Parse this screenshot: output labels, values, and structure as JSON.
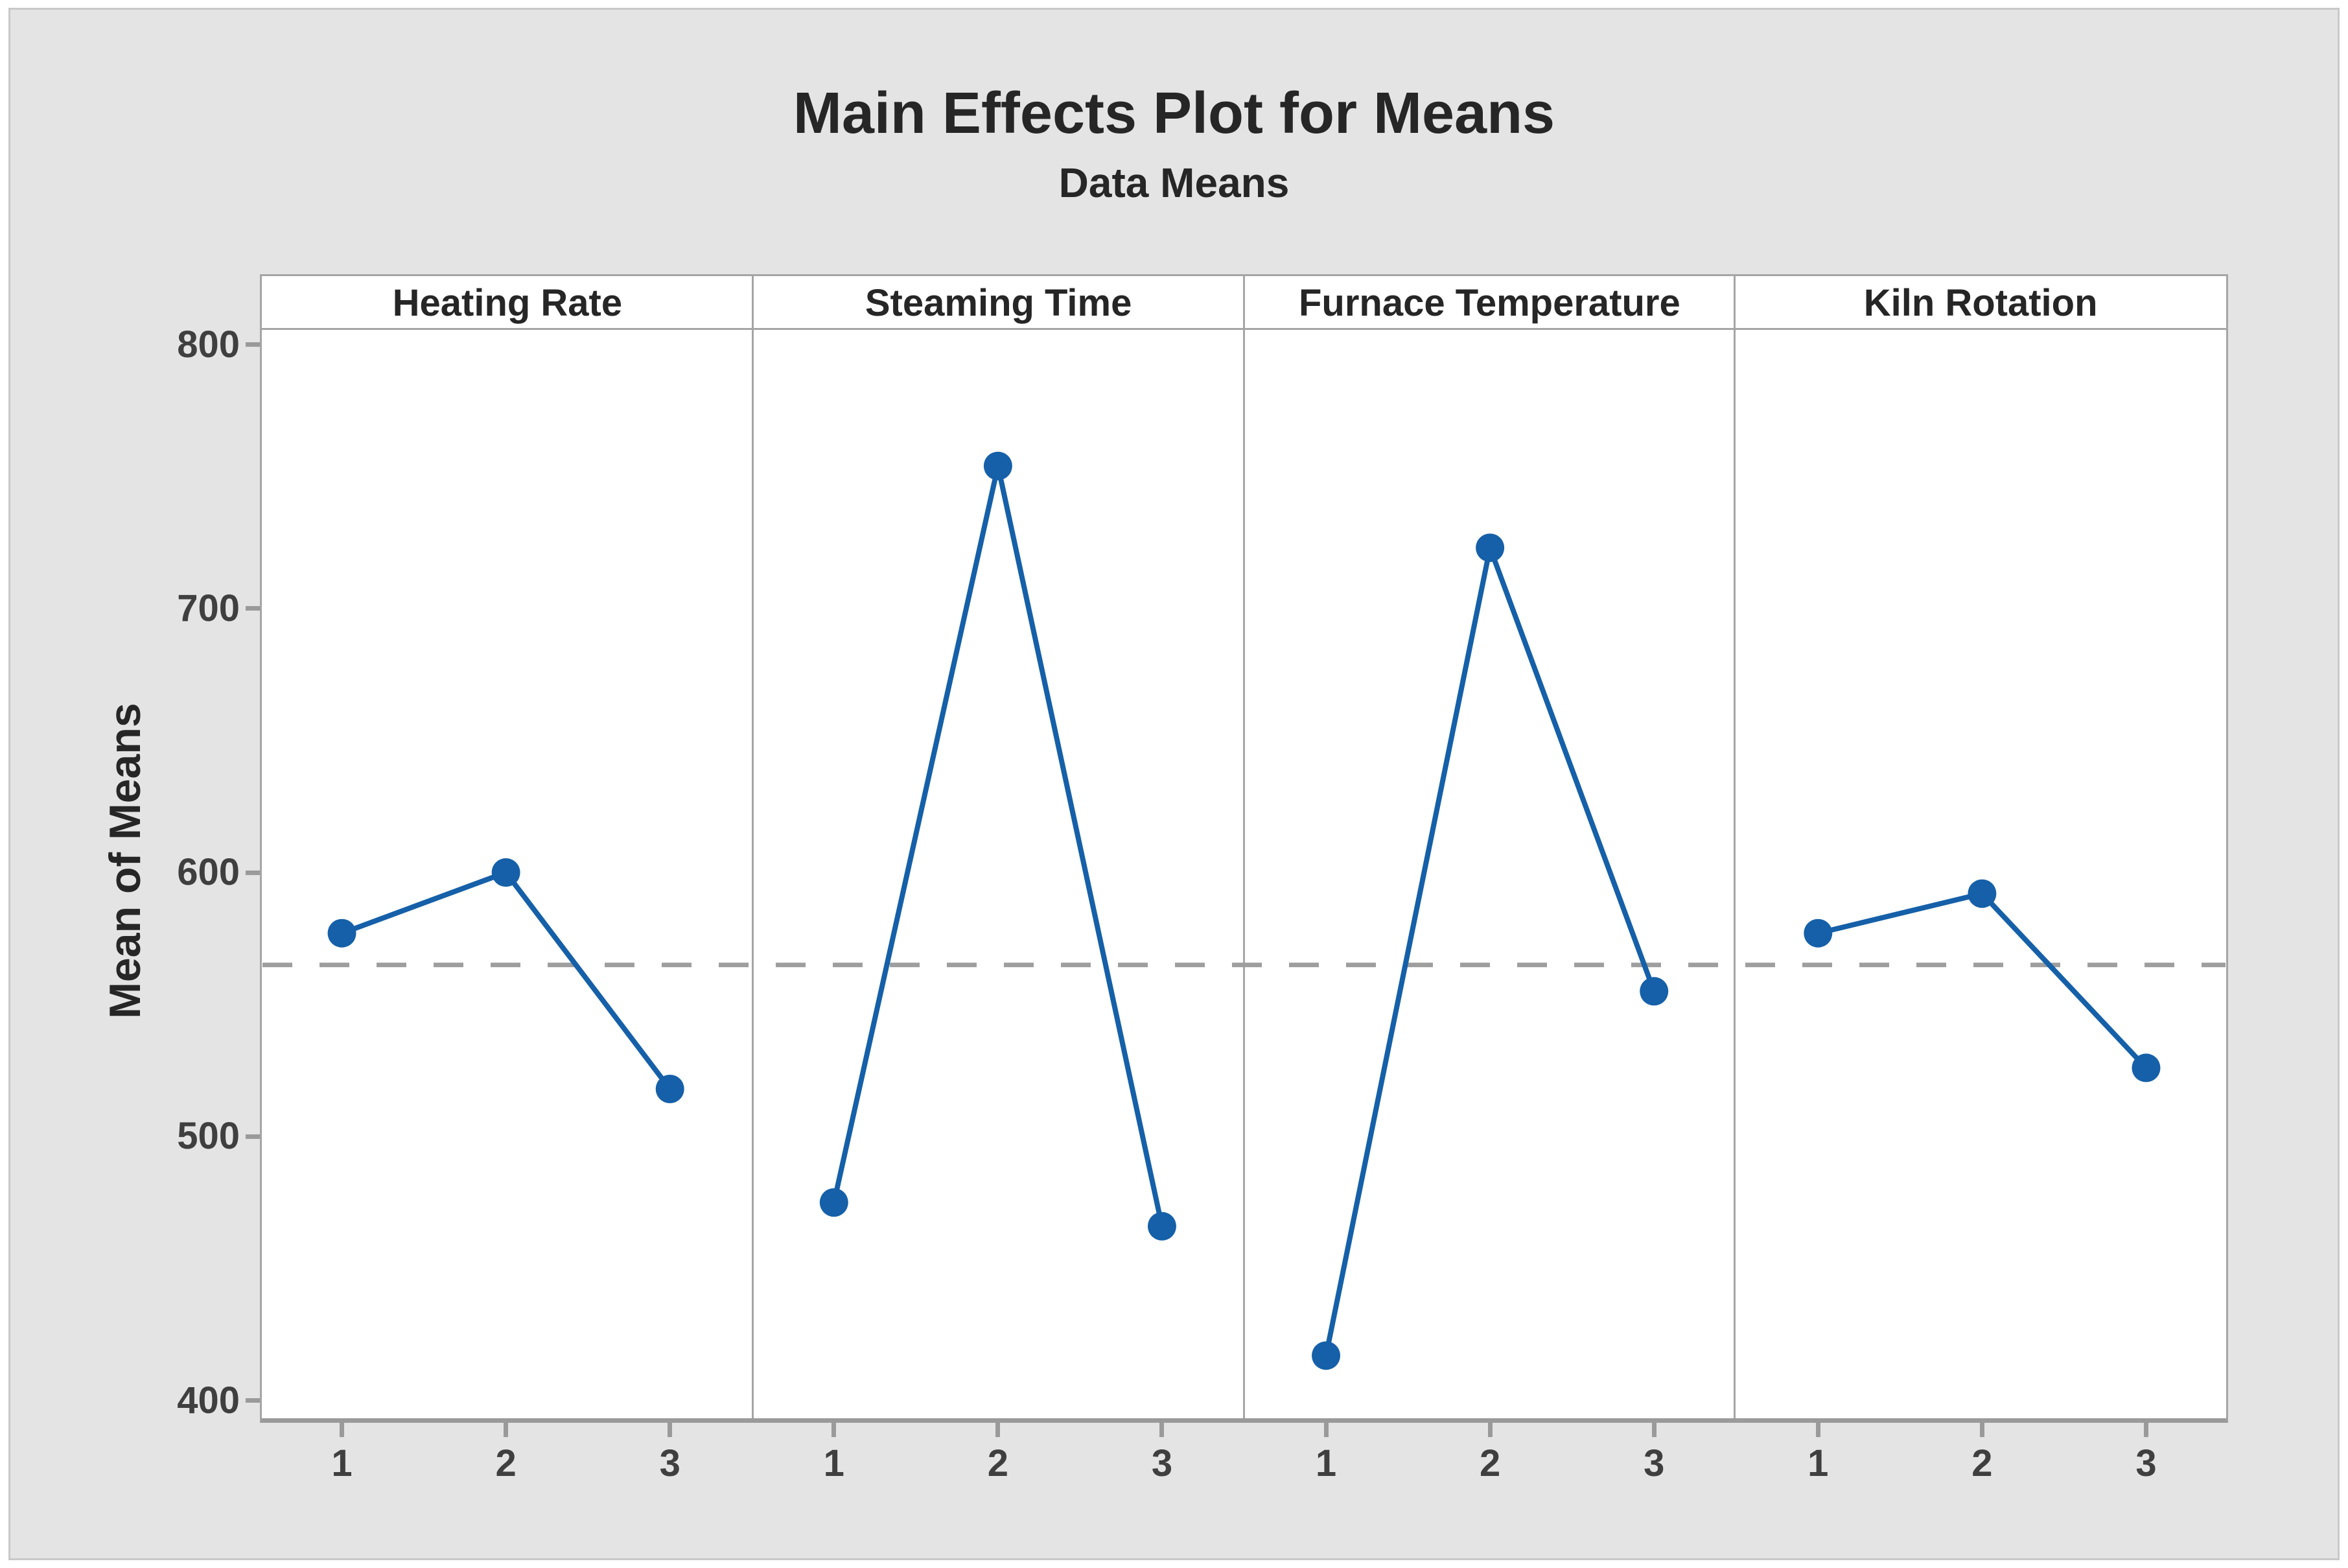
{
  "chart_data": {
    "type": "line",
    "title": "Main Effects Plot for Means",
    "subtitle": "Data Means",
    "ylabel": "Mean of Means",
    "categories": [
      "1",
      "2",
      "3"
    ],
    "yticks": [
      400,
      500,
      600,
      700,
      800
    ],
    "ylim": [
      394,
      807
    ],
    "grid": false,
    "legend": false,
    "panels": [
      {
        "label": "Heating Rate",
        "x": [
          1,
          2,
          3
        ],
        "values": [
          577,
          600,
          518
        ]
      },
      {
        "label": "Steaming Time",
        "x": [
          1,
          2,
          3
        ],
        "values": [
          475,
          754,
          466
        ]
      },
      {
        "label": "Furnace Temperature",
        "x": [
          1,
          2,
          3
        ],
        "values": [
          417,
          723,
          555
        ]
      },
      {
        "label": "Kiln Rotation",
        "x": [
          1,
          2,
          3
        ],
        "values": [
          577,
          592,
          526
        ]
      }
    ],
    "reference_line": {
      "value": 565,
      "style": "dashed",
      "color": "#9e9e9e"
    },
    "colors": {
      "series": "#1560a8",
      "figure_background": "#e4e4e4",
      "panel_background": "#ffffff",
      "panel_border": "#a5a5a5",
      "axis": "#9a9a9a",
      "text": "#262626"
    },
    "marker": "circle"
  }
}
